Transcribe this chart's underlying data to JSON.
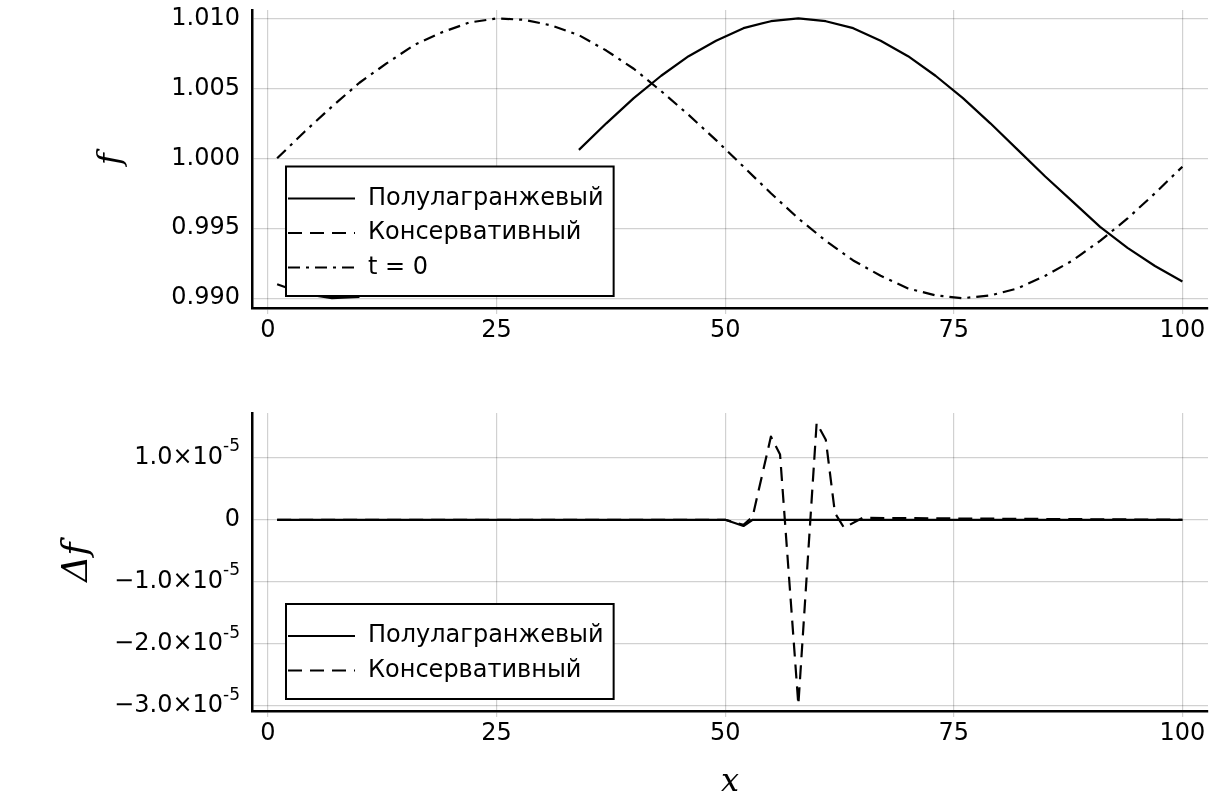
{
  "chart_data": [
    {
      "type": "line",
      "ylabel": "f",
      "xlim": [
        -1.75,
        102.8
      ],
      "xticks": [
        0,
        25,
        50,
        75,
        100
      ],
      "ylim": [
        0.9893,
        1.0106
      ],
      "yticks": [
        {
          "value": 0.99,
          "label": "0.990"
        },
        0.995,
        {
          "value": 1.0,
          "label": "1.000"
        },
        1.005,
        {
          "value": 1.01,
          "label": "1.010"
        }
      ],
      "grid": true,
      "legend": "bottom left",
      "x": [
        1,
        4,
        7,
        10,
        13,
        16,
        19,
        22,
        25,
        28,
        31,
        34,
        37,
        40,
        43,
        46,
        49,
        52,
        55,
        58,
        61,
        64,
        67,
        70,
        73,
        76,
        79,
        82,
        85,
        88,
        91,
        94,
        97,
        100
      ],
      "series": [
        {
          "name": "Полулагранжевый",
          "color": "#000000",
          "line_style": "solid",
          "values": [
            0.991,
            0.9903,
            0.99,
            0.9901,
            null,
            null,
            null,
            null,
            null,
            null,
            null,
            1.0006,
            1.0025,
            1.0043,
            1.0059,
            1.0073,
            1.0084,
            1.0093,
            1.0098,
            1.01,
            1.0098,
            1.0093,
            1.0084,
            1.0073,
            1.0059,
            1.0043,
            1.0025,
            1.0006,
            0.9987,
            0.9969,
            0.9951,
            0.9936,
            0.9923,
            0.9912
          ]
        },
        {
          "name": "Консервативный",
          "color": "#000000",
          "line_style": "dashed",
          "values": [
            null,
            null,
            null,
            null,
            null,
            null,
            null,
            null,
            null,
            null,
            null,
            null,
            null,
            null,
            null,
            null,
            null,
            null,
            null,
            null,
            null,
            null,
            null,
            null,
            null,
            null,
            null,
            null,
            null,
            null,
            null,
            null,
            null,
            null
          ]
        },
        {
          "name": "t = 0",
          "color": "#000000",
          "line_style": "dashdot",
          "values": [
            1.0,
            1.0019,
            1.0037,
            1.0054,
            1.0068,
            1.0081,
            1.009,
            1.0097,
            1.01,
            1.0099,
            1.0095,
            1.0088,
            1.0077,
            1.0064,
            1.0048,
            1.0031,
            1.0013,
            0.9994,
            0.9975,
            0.9957,
            0.9941,
            0.9927,
            0.9916,
            0.9907,
            0.9902,
            0.99,
            0.9902,
            0.9907,
            0.9916,
            0.9927,
            0.9941,
            0.9957,
            0.9975,
            0.9994
          ]
        }
      ]
    },
    {
      "type": "line",
      "xlabel": "x",
      "ylabel": "Δf",
      "xlim": [
        -1.75,
        102.8
      ],
      "xticks": [
        0,
        25,
        50,
        75,
        100
      ],
      "ylim": [
        -3.08e-05,
        1.72e-05
      ],
      "yticks": [
        {
          "value": -3e-05,
          "label": "−3.0×10$^{-5}$"
        },
        {
          "value": -2e-05,
          "label": "−2.0×10$^{-5}$"
        },
        {
          "value": -1e-05,
          "label": "−1.0×10$^{-5}$"
        },
        0,
        {
          "value": 1e-05,
          "label": "1.0×10$^{-5}$"
        }
      ],
      "grid": true,
      "legend": "bottom left",
      "series": [
        {
          "name": "Полулагранжевый",
          "color": "#000000",
          "line_style": "solid",
          "x": [
            1,
            50,
            52,
            53,
            100
          ],
          "values": [
            0,
            0,
            -1e-06,
            0,
            0
          ]
        },
        {
          "name": "Консервативный",
          "color": "#000000",
          "line_style": "dashed",
          "x": [
            1,
            50,
            52,
            53,
            55,
            56,
            58,
            60,
            61,
            62,
            63,
            65,
            100
          ],
          "values": [
            0,
            0,
            -8e-07,
            5e-07,
            1.34e-05,
            1.05e-05,
            -2.98e-05,
            1.56e-05,
            1.29e-05,
            1.1e-06,
            -1.3e-06,
            3e-07,
            0
          ]
        }
      ]
    }
  ]
}
